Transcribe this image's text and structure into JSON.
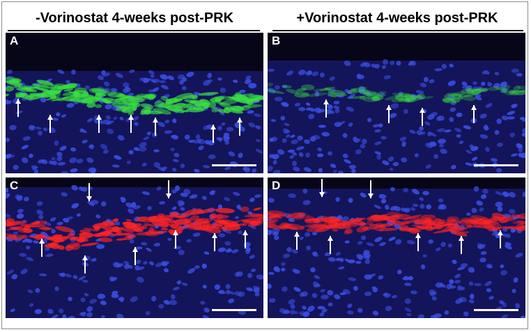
{
  "headers": {
    "left": "-Vorinostat 4-weeks post-PRK",
    "right": "+Vorinostat 4-weeks post-PRK"
  },
  "panels": [
    {
      "label": "A",
      "stain": "green",
      "stain_color": "#38e040",
      "band_intensity": "strong"
    },
    {
      "label": "B",
      "stain": "green",
      "stain_color": "#38e040",
      "band_intensity": "weak"
    },
    {
      "label": "C",
      "stain": "red",
      "stain_color": "#ff2424",
      "band_intensity": "strong"
    },
    {
      "label": "D",
      "stain": "red",
      "stain_color": "#ff2424",
      "band_intensity": "moderate"
    }
  ],
  "colors": {
    "nuclei": "#3a4de0",
    "background": "#14145a",
    "arrow": "#ffffff"
  }
}
